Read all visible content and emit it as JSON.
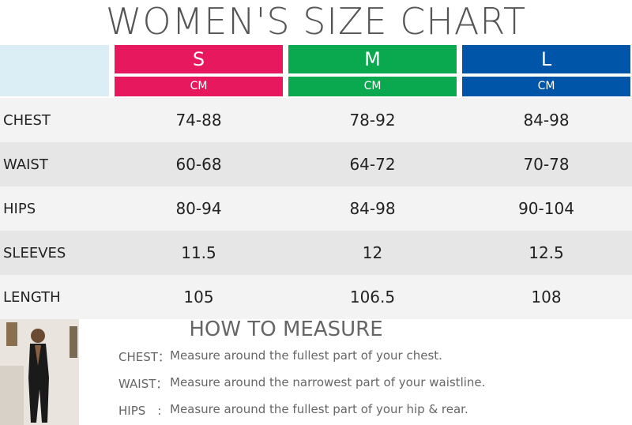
{
  "header": {
    "title": "WOMEN'S SIZE CHART"
  },
  "table": {
    "columns": [
      {
        "size": "S",
        "unit": "CM"
      },
      {
        "size": "M",
        "unit": "CM"
      },
      {
        "size": "L",
        "unit": "CM"
      }
    ],
    "rows": [
      [
        "CHEST",
        "74-88",
        "78-92",
        "84-98"
      ],
      [
        "WAIST",
        "60-68",
        "64-72",
        "70-78"
      ],
      [
        "HIPS",
        "80-94",
        "84-98",
        "90-104"
      ],
      [
        "SLEEVES",
        "11.5",
        "12",
        "12.5"
      ],
      [
        "LENGTH",
        "105",
        "106.5",
        "108"
      ]
    ]
  },
  "measure": {
    "title": "HOW TO MEASURE",
    "items": [
      {
        "label": "CHEST：",
        "text": "Measure around the fullest part of your chest."
      },
      {
        "label": "WAIST：",
        "text": "Measure around the narrowest part of your waistline."
      },
      {
        "label": "HIPS　:",
        "text": "Measure around the fullest part of your hip & rear."
      }
    ]
  }
}
